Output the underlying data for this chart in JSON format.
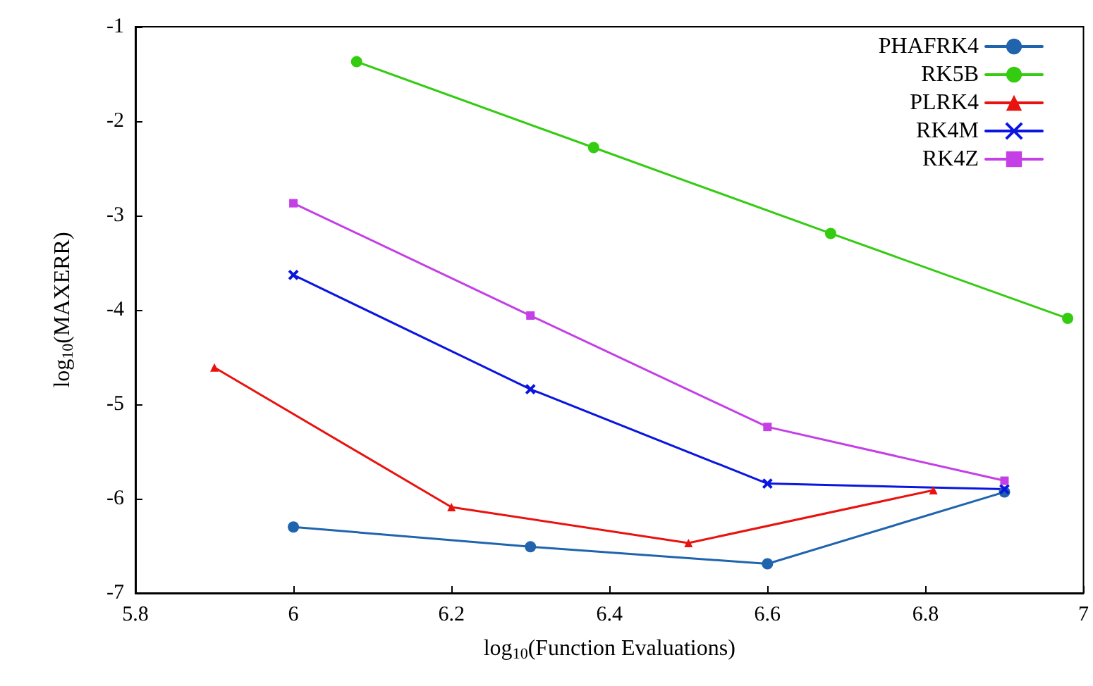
{
  "chart_data": {
    "type": "line",
    "xlabel": "log$_{10}$(Function Evaluations)",
    "ylabel": "log$_{10}$(MAXERR)",
    "series": [
      {
        "name": "PHAFRK4",
        "color": "#1f64ad",
        "marker": "circle",
        "x": [
          6,
          6.3,
          6.6,
          6.9
        ],
        "values": [
          -6.3,
          -6.51,
          -6.69,
          -5.93
        ]
      },
      {
        "name": "RK5B",
        "color": "#33cc11",
        "marker": "circle",
        "x": [
          6.08,
          6.38,
          6.68,
          6.98
        ],
        "values": [
          -1.37,
          -2.28,
          -3.19,
          -4.09
        ]
      },
      {
        "name": "PLRK4",
        "color": "#e8130f",
        "marker": "triangle",
        "x": [
          5.9,
          6.2,
          6.5,
          6.81
        ],
        "values": [
          -4.61,
          -6.09,
          -6.47,
          -5.91
        ]
      },
      {
        "name": "RK4M",
        "color": "#0a16e0",
        "marker": "cross",
        "x": [
          6,
          6.3,
          6.6,
          6.9
        ],
        "values": [
          -3.63,
          -4.84,
          -5.84,
          -5.9
        ]
      },
      {
        "name": "RK4Z",
        "color": "#c43fe6",
        "marker": "square",
        "x": [
          6,
          6.3,
          6.6,
          6.9
        ],
        "values": [
          -2.87,
          -4.06,
          -5.24,
          -5.81
        ]
      }
    ],
    "xlim": [
      5.8,
      7
    ],
    "xticks": [
      5.8,
      6,
      6.2,
      6.4,
      6.6,
      6.8,
      7
    ],
    "ylim": [
      -7,
      -1
    ],
    "yticks": [
      -7,
      -6,
      -5,
      -4,
      -3,
      -2,
      -1
    ],
    "grid": false,
    "legend": "top right",
    "line_style": "solid"
  }
}
